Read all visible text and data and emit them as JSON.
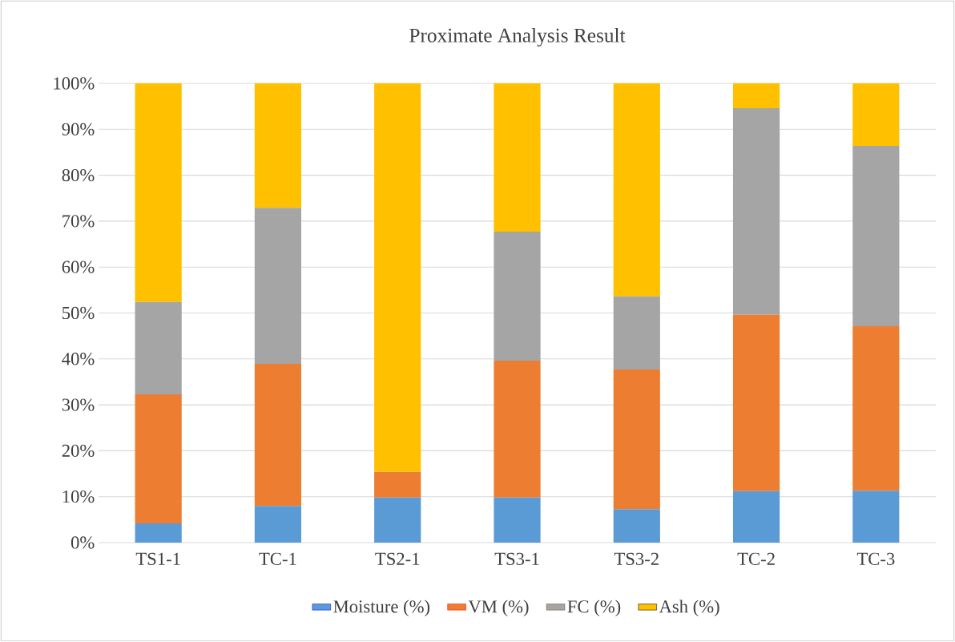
{
  "chart_data": {
    "type": "bar",
    "stacked": true,
    "title": "Proximate Analysis Result",
    "categories": [
      "TS1-1",
      "TC-1",
      "TS2-1",
      "TS3-1",
      "TS3-2",
      "TC-2",
      "TC-3"
    ],
    "series": [
      {
        "name": "Moisture (%)",
        "color": "#5b9bd5",
        "values": [
          4.2,
          8.0,
          9.8,
          9.8,
          7.3,
          11.2,
          11.3
        ]
      },
      {
        "name": "VM (%)",
        "color": "#ed7d31",
        "values": [
          28.1,
          30.9,
          5.6,
          29.8,
          30.4,
          38.4,
          35.8
        ]
      },
      {
        "name": "FC (%)",
        "color": "#a5a5a5",
        "values": [
          20.1,
          34.0,
          0,
          28.1,
          15.9,
          45.0,
          39.3
        ]
      },
      {
        "name": "Ash (%)",
        "color": "#ffc000",
        "values": [
          47.6,
          27.1,
          84.6,
          32.3,
          46.4,
          5.4,
          13.6
        ]
      }
    ],
    "ylim": [
      0,
      100
    ],
    "yticks": [
      {
        "value": 0,
        "label": "0%"
      },
      {
        "value": 10,
        "label": "10%"
      },
      {
        "value": 20,
        "label": "20%"
      },
      {
        "value": 30,
        "label": "30%"
      },
      {
        "value": 40,
        "label": "40%"
      },
      {
        "value": 50,
        "label": "50%"
      },
      {
        "value": 60,
        "label": "60%"
      },
      {
        "value": 70,
        "label": "70%"
      },
      {
        "value": 80,
        "label": "80%"
      },
      {
        "value": 90,
        "label": "90%"
      },
      {
        "value": 100,
        "label": "100%"
      }
    ],
    "grid": "y",
    "legend": "bottom"
  }
}
